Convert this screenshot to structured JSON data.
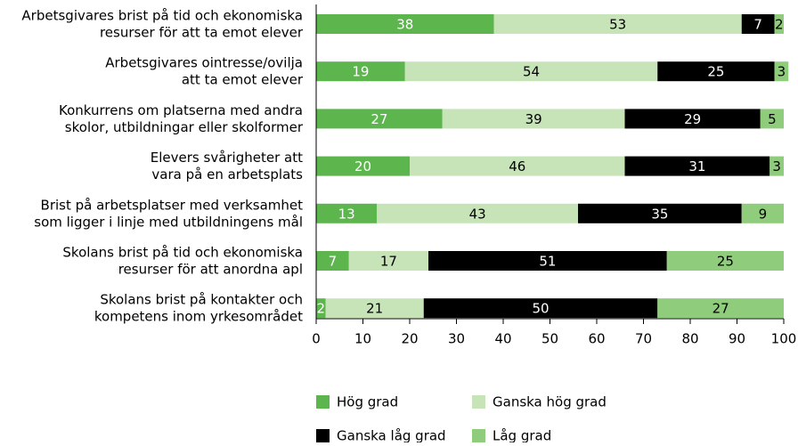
{
  "chart_data": {
    "type": "stacked-barh",
    "categories": [
      [
        "Arbetsgivares brist på tid och ekonomiska",
        "resurser för att ta emot elever"
      ],
      [
        "Arbetsgivares ointresse/ovilja",
        "att ta emot elever"
      ],
      [
        "Konkurrens om platserna med andra",
        "skolor, utbildningar eller skolformer"
      ],
      [
        "Elevers svårigheter att",
        "vara på en arbetsplats"
      ],
      [
        "Brist på arbetsplatser med verksamhet",
        "som ligger i linje med utbildningens mål"
      ],
      [
        "Skolans brist på tid och ekonomiska",
        "resurser för att anordna apl"
      ],
      [
        "Skolans brist på kontakter och",
        "kompetens inom yrkesområdet"
      ]
    ],
    "series": [
      {
        "name": "Hög grad",
        "color": "#5db54d",
        "label_color": "#ffffff",
        "values": [
          38,
          19,
          27,
          20,
          13,
          7,
          2
        ]
      },
      {
        "name": "Ganska hög grad",
        "color": "#c7e4b9",
        "label_color": "#000000",
        "values": [
          53,
          54,
          39,
          46,
          43,
          17,
          21
        ]
      },
      {
        "name": "Ganska låg grad",
        "color": "#000000",
        "label_color": "#ffffff",
        "values": [
          7,
          25,
          29,
          31,
          35,
          51,
          50
        ]
      },
      {
        "name": "Låg grad",
        "color": "#8fcc7b",
        "label_color": "#000000",
        "values": [
          2,
          3,
          5,
          3,
          9,
          25,
          27
        ]
      }
    ],
    "xlim": [
      0,
      100
    ],
    "xticks": [
      0,
      10,
      20,
      30,
      40,
      50,
      60,
      70,
      80,
      90,
      100
    ]
  }
}
